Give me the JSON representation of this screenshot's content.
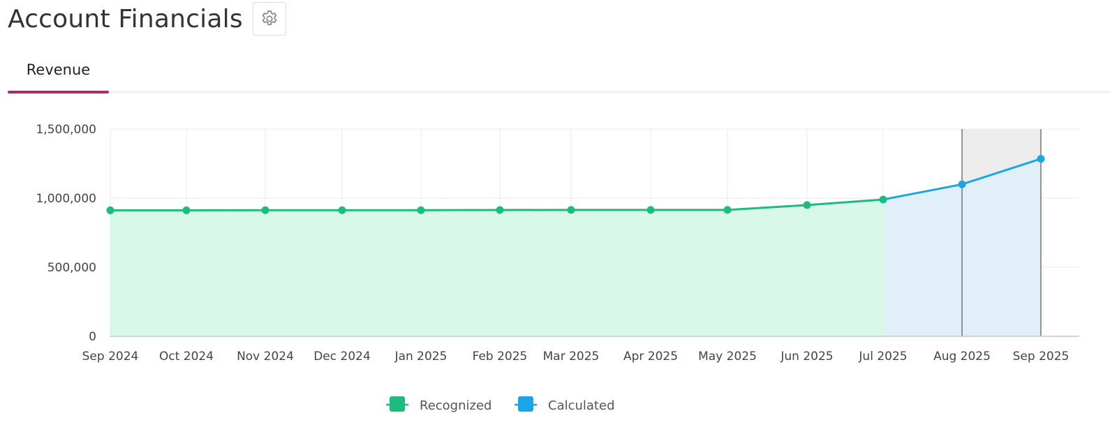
{
  "header": {
    "title": "Account Financials",
    "settings_icon": "gear-icon"
  },
  "tabs": [
    {
      "label": "Revenue",
      "active": true
    }
  ],
  "colors": {
    "recognized": "#1dbb7f",
    "recognized_fill": "#d8f8e9",
    "calculated": "#1ca5e6",
    "calculated_fill": "#e1eff8",
    "tab_accent": "#a1316f",
    "highlight_band": "#ececec"
  },
  "chart_data": {
    "type": "area",
    "categories": [
      "Sep 2024",
      "Oct 2024",
      "Nov 2024",
      "Dec 2024",
      "Jan 2025",
      "Feb 2025",
      "Mar 2025",
      "Apr 2025",
      "May 2025",
      "Jun 2025",
      "Jul 2025",
      "Aug 2025",
      "Sep 2025"
    ],
    "y_ticks": [
      "0",
      "500,000",
      "1,000,000",
      "1,500,000"
    ],
    "ylim": [
      0,
      1500000
    ],
    "series": [
      {
        "name": "Recognized",
        "color": "#1dbb7f",
        "values": [
          912000,
          912000,
          913000,
          913000,
          913000,
          914000,
          915000,
          915000,
          915000,
          950000,
          990000,
          null,
          null
        ]
      },
      {
        "name": "Calculated",
        "color": "#1ca5e6",
        "values": [
          null,
          null,
          null,
          null,
          null,
          null,
          null,
          null,
          null,
          null,
          990000,
          1100000,
          1285000
        ]
      }
    ],
    "highlight_range": [
      "Aug 2025",
      "Sep 2025"
    ],
    "legend_position": "bottom-center",
    "grid": true
  }
}
